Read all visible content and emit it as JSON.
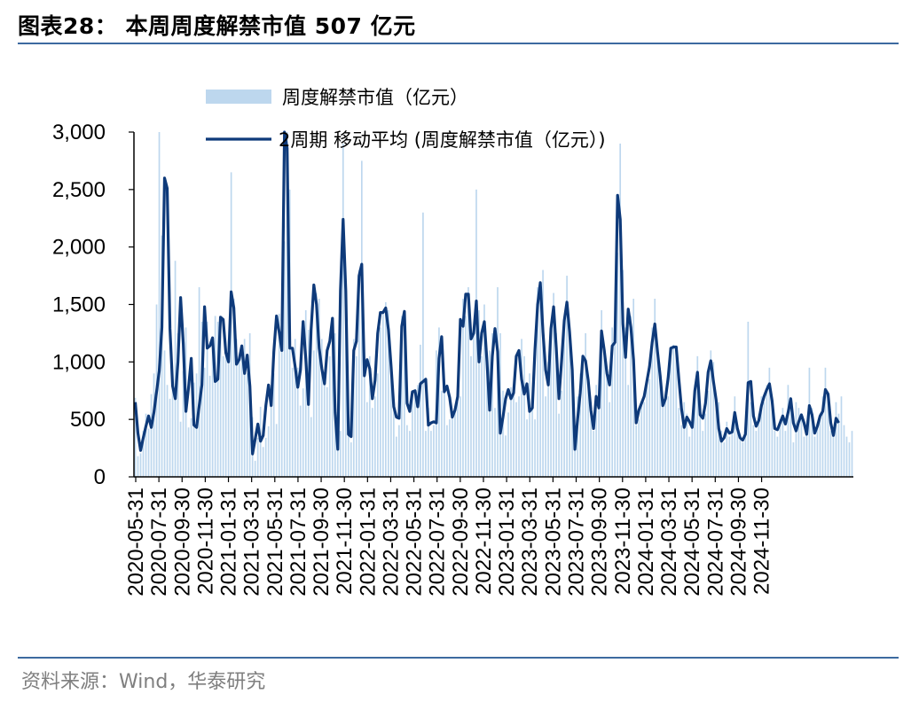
{
  "figure": {
    "title": "图表28：  本周周度解禁市值 507 亿元",
    "source": "资料来源：Wind，华泰研究"
  },
  "colors": {
    "bar": "#bdd7ee",
    "line": "#0e3a7a",
    "rule": "#3d6aa0",
    "axis": "#000000"
  },
  "chart_data": {
    "type": "bar",
    "title": "",
    "xlabel": "",
    "ylabel": "",
    "ylim": [
      0,
      3000
    ],
    "yticks": [
      "0",
      "500",
      "1,000",
      "1,500",
      "2,000",
      "2,500",
      "3,000"
    ],
    "xtick_labels": [
      "2020-05-31",
      "2020-07-31",
      "2020-09-30",
      "2020-11-30",
      "2021-01-31",
      "2021-03-31",
      "2021-05-31",
      "2021-07-31",
      "2021-09-30",
      "2021-11-30",
      "2022-01-31",
      "2022-03-31",
      "2022-05-31",
      "2022-07-31",
      "2022-09-30",
      "2022-11-30",
      "2023-01-31",
      "2023-03-31",
      "2023-05-31",
      "2023-07-31",
      "2023-09-30",
      "2023-11-30",
      "2024-01-31",
      "2024-03-31",
      "2024-05-31",
      "2024-07-31",
      "2024-09-30",
      "2024-11-30"
    ],
    "weeks_per_tick": 8.7,
    "legend_position": "top",
    "series": [
      {
        "name": "周度解禁市值（亿元）",
        "type": "bar",
        "values": [
          688,
          180,
          205,
          400,
          550,
          420,
          720,
          900,
          1500,
          3000,
          2100,
          1100,
          800,
          680,
          900,
          1880,
          1250,
          480,
          920,
          1300,
          430,
          510,
          820,
          900,
          1650,
          1350,
          950,
          1350,
          880,
          1100,
          1400,
          1350,
          1230,
          1050,
          1100,
          1200,
          2650,
          1550,
          1200,
          1050,
          1150,
          1200,
          900,
          1250,
          520,
          140,
          340,
          610,
          260,
          340,
          440,
          800,
          900,
          460,
          1420,
          1350,
          2050,
          3000,
          2500,
          950,
          1200,
          950,
          620,
          770,
          1450,
          1280,
          520,
          1100,
          1600,
          1550,
          1200,
          850,
          780,
          1050,
          1150,
          1250,
          420,
          400,
          2900,
          1520,
          400,
          300,
          1200,
          1050,
          1800,
          2750,
          1050,
          650,
          1050,
          600,
          700,
          900,
          1300,
          1420,
          1520,
          1450,
          900,
          600,
          350,
          450,
          1400,
          1250,
          450,
          400,
          700,
          750,
          800,
          1150,
          2300,
          400,
          600,
          400,
          450,
          1100,
          1300,
          750,
          850,
          450,
          500,
          550,
          600,
          650,
          700,
          1550,
          1400,
          1650,
          1050,
          1300,
          2500,
          1450,
          1050,
          1500,
          1000,
          1100,
          1250,
          600,
          1650,
          1250,
          750,
          360,
          560,
          780,
          780,
          650,
          700,
          1200,
          1050,
          500,
          900,
          600,
          500,
          1650,
          1550,
          1800,
          700,
          1000,
          1200,
          1600,
          1250,
          550,
          750,
          1300,
          1750,
          1200,
          850,
          300,
          700,
          900,
          1050,
          1250,
          850,
          650,
          400,
          800,
          600,
          1450,
          1050,
          950,
          650,
          1300,
          1200,
          1950,
          2900,
          1800,
          1300,
          800,
          1400,
          1550,
          450,
          500,
          650,
          650,
          800,
          850,
          1300,
          1550,
          1050,
          950,
          620,
          680,
          700,
          1100,
          1150,
          1080,
          600,
          450,
          650,
          550,
          350,
          450,
          800,
          1050,
          650,
          400,
          550,
          750,
          1100,
          1000,
          700,
          650,
          400,
          300,
          480,
          350,
          450,
          700,
          420,
          350,
          300,
          400,
          1350,
          650,
          450,
          400,
          550,
          700,
          650,
          800,
          950,
          600,
          400,
          350,
          500,
          600,
          400,
          800,
          650,
          300,
          650,
          600,
          550,
          350,
          400,
          950,
          600,
          350,
          450,
          550,
          700,
          950,
          700,
          400,
          350,
          650,
          550,
          700,
          450,
          350,
          300,
          400
        ]
      },
      {
        "name": "2周期 移动平均 (周度解禁市值（亿元）)",
        "type": "line",
        "values": [
          650,
          380,
          230,
          340,
          440,
          530,
          430,
          560,
          740,
          920,
          1300,
          2600,
          2510,
          1290,
          790,
          680,
          1000,
          1560,
          1160,
          570,
          780,
          1030,
          450,
          430,
          620,
          800,
          1480,
          1120,
          1140,
          1210,
          830,
          850,
          1390,
          1370,
          1080,
          1000,
          1610,
          1470,
          980,
          1020,
          1140,
          900,
          1060,
          790,
          200,
          330,
          460,
          310,
          360,
          620,
          800,
          620,
          1090,
          1400,
          1260,
          1100,
          3000,
          2860,
          1120,
          1120,
          960,
          780,
          930,
          1350,
          1030,
          630,
          1280,
          1670,
          1500,
          1120,
          940,
          810,
          1100,
          1180,
          1380,
          560,
          240,
          1620,
          2240,
          1620,
          370,
          350,
          1100,
          1180,
          1750,
          1850,
          880,
          1020,
          940,
          680,
          840,
          1250,
          1430,
          1430,
          1470,
          1280,
          960,
          610,
          520,
          510,
          1310,
          1440,
          640,
          570,
          740,
          750,
          610,
          810,
          830,
          850,
          450,
          470,
          480,
          470,
          1030,
          1220,
          740,
          790,
          690,
          520,
          580,
          700,
          1370,
          1310,
          1590,
          1590,
          1200,
          1250,
          1530,
          1000,
          1250,
          1350,
          1000,
          580,
          1050,
          1290,
          1090,
          380,
          520,
          680,
          760,
          680,
          730,
          1050,
          1100,
          850,
          720,
          810,
          570,
          600,
          1110,
          1500,
          1690,
          1260,
          930,
          800,
          1290,
          1480,
          1120,
          680,
          1010,
          1360,
          1520,
          1260,
          930,
          240,
          500,
          730,
          1050,
          1010,
          840,
          580,
          420,
          700,
          600,
          1270,
          1100,
          900,
          800,
          1140,
          1170,
          2450,
          2240,
          1330,
          1040,
          1460,
          1300,
          1020,
          470,
          580,
          640,
          700,
          830,
          960,
          1170,
          1330,
          1090,
          880,
          620,
          680,
          860,
          1120,
          1130,
          1130,
          850,
          590,
          430,
          520,
          480,
          430,
          750,
          910,
          540,
          510,
          640,
          910,
          1010,
          830,
          670,
          420,
          310,
          340,
          420,
          380,
          390,
          560,
          420,
          340,
          320,
          370,
          820,
          830,
          530,
          440,
          490,
          620,
          700,
          760,
          810,
          660,
          420,
          410,
          470,
          530,
          460,
          560,
          680,
          470,
          400,
          480,
          540,
          470,
          370,
          620,
          540,
          380,
          440,
          530,
          570,
          760,
          720,
          470,
          360,
          510,
          470
        ],
        "line_values_note": ""
      }
    ]
  }
}
